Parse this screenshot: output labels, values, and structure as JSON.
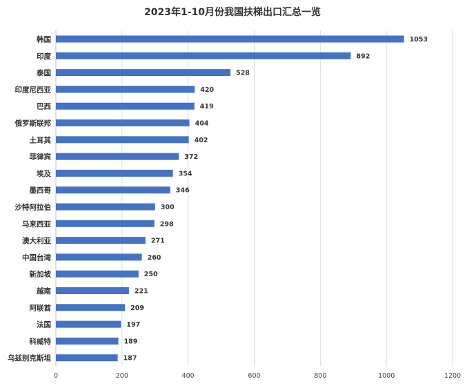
{
  "chart_data": {
    "type": "bar",
    "orientation": "horizontal",
    "title": "2023年1-10月份我国扶梯出口汇总一览",
    "categories": [
      "韩国",
      "印度",
      "泰国",
      "印度尼西亚",
      "巴西",
      "俄罗斯联邦",
      "土耳其",
      "菲律宾",
      "埃及",
      "墨西哥",
      "沙特阿拉伯",
      "马来西亚",
      "澳大利亚",
      "中国台湾",
      "新加坡",
      "越南",
      "阿联酋",
      "法国",
      "科威特",
      "乌兹别克斯坦"
    ],
    "values": [
      1053,
      892,
      528,
      420,
      419,
      404,
      402,
      372,
      354,
      346,
      300,
      298,
      271,
      260,
      250,
      221,
      209,
      197,
      189,
      187
    ],
    "xlim": [
      0,
      1200
    ],
    "xticks": [
      0,
      200,
      400,
      600,
      800,
      1000,
      1200
    ],
    "xtick_labels": [
      "0",
      "200",
      "400",
      "600",
      "800",
      "1000",
      "1200"
    ],
    "grid": "vertical",
    "data_labels": true,
    "legend": "none",
    "colors": {
      "bar": "#4472C4",
      "grid": "#dcdcdc",
      "text": "#333333"
    }
  }
}
